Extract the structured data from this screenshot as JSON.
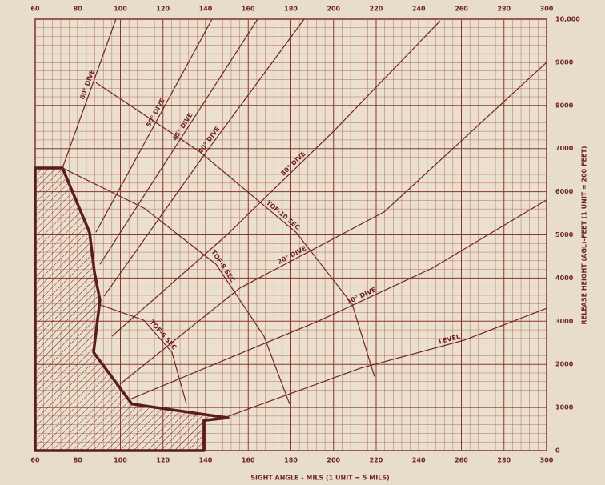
{
  "chart_data": {
    "type": "line",
    "xlabel": "SIGHT ANGLE - MILS (1 UNIT = 5 MILS)",
    "ylabel": "RELEASE HEIGHT (AGL)-FEET (1 UNIT = 200 FEET)",
    "xlim": [
      60,
      300
    ],
    "xticks": [
      60,
      80,
      100,
      120,
      140,
      160,
      180,
      200,
      220,
      240,
      260,
      280,
      300
    ],
    "ylim": [
      0,
      10000
    ],
    "yticks": [
      0,
      1000,
      2000,
      3000,
      4000,
      5000,
      6000,
      7000,
      8000,
      9000,
      {
        "value": 10000,
        "label": "10,000"
      }
    ],
    "grid": true,
    "color": "#7a2b2b",
    "series": [
      {
        "name": "60° DIVE",
        "x": [
          72.8,
          97.9
        ],
        "values": [
          6550,
          10000
        ]
      },
      {
        "name": "50° DIVE",
        "x": [
          88.5,
          143
        ],
        "values": [
          5060,
          10000
        ]
      },
      {
        "name": "45° DIVE",
        "x": [
          90.4,
          164.4
        ],
        "values": [
          4320,
          10000
        ]
      },
      {
        "name": "40° DIVE",
        "x": [
          92.3,
          140,
          186.2
        ],
        "values": [
          3580,
          6900,
          10000
        ]
      },
      {
        "name": "30° DIVE",
        "x": [
          96,
          150,
          200,
          250
        ],
        "values": [
          2650,
          5000,
          7400,
          9960
        ]
      },
      {
        "name": "20° DIVE",
        "x": [
          99.8,
          156.1,
          223.7,
          300
        ],
        "values": [
          1540,
          3770,
          5530,
          9000
        ]
      },
      {
        "name": "10° DIVE",
        "x": [
          103.6,
          193.7,
          246.3,
          300
        ],
        "values": [
          1170,
          3020,
          4230,
          5810
        ]
      },
      {
        "name": "LEVEL",
        "x": [
          148.6,
          212.5,
          261.3,
          300
        ],
        "values": [
          760,
          1910,
          2560,
          3300
        ]
      },
      {
        "name": "TOF-10 SEC",
        "x": [
          88.5,
          137.4,
          182.4,
          208.7,
          219.2
        ],
        "values": [
          8530,
          6920,
          5060,
          3400,
          1720
        ]
      },
      {
        "name": "TOF-8 SEC",
        "x": [
          72.8,
          111.1,
          144.9,
          167.4,
          179.4
        ],
        "values": [
          6550,
          5620,
          4320,
          2650,
          1080
        ]
      },
      {
        "name": "TOF-6 SEC",
        "x": [
          89.3,
          111.1,
          124.2,
          131
        ],
        "values": [
          3400,
          3020,
          2280,
          1080
        ]
      }
    ],
    "region": {
      "x": [
        60,
        72.8,
        85.5,
        87.8,
        90.4,
        87.4,
        105.4,
        150.5,
        139.2,
        139.2,
        60
      ],
      "y": [
        6550,
        6550,
        5060,
        4140,
        3490,
        2280,
        1080,
        760,
        700,
        0,
        0
      ]
    }
  }
}
